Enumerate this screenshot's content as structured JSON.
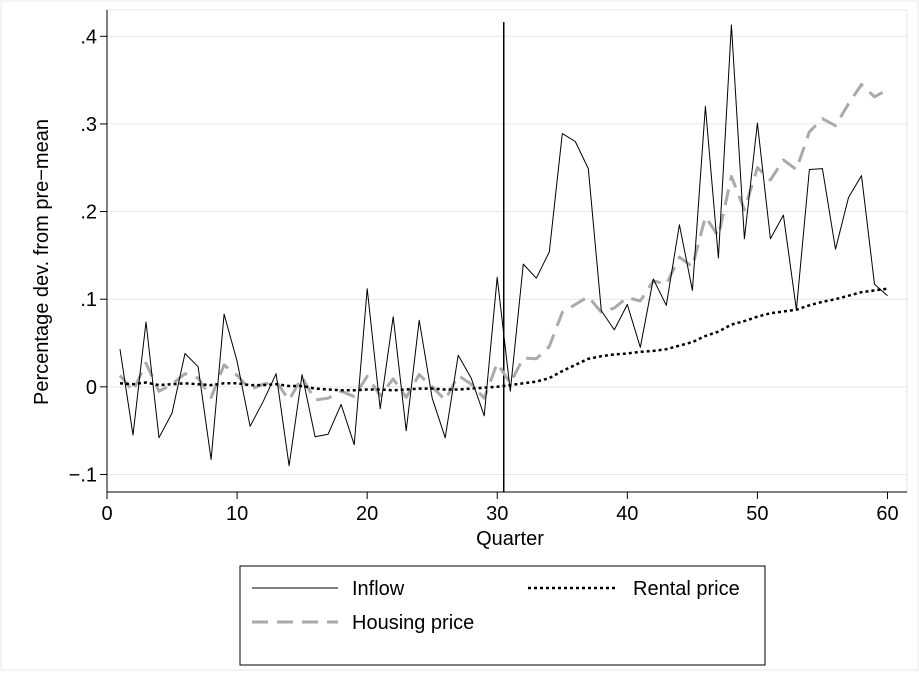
{
  "chart_data": {
    "type": "line",
    "title": "",
    "xlabel": "Quarter",
    "ylabel": "Percentage dev. from pre−mean",
    "xlim": [
      0,
      61.5
    ],
    "ylim": [
      -0.12,
      0.43
    ],
    "xticks": [
      0,
      10,
      20,
      30,
      40,
      50,
      60
    ],
    "xtick_labels": [
      "0",
      "10",
      "20",
      "30",
      "40",
      "50",
      "60"
    ],
    "yticks": [
      -0.1,
      0,
      0.1,
      0.2,
      0.3,
      0.4
    ],
    "ytick_labels": [
      "−.1",
      "0",
      ".1",
      ".2",
      ".3",
      ".4"
    ],
    "grid": "horizontal",
    "legend_position": "bottom",
    "vertical_line_x": 30.5,
    "x": [
      1,
      2,
      3,
      4,
      5,
      6,
      7,
      8,
      9,
      10,
      11,
      12,
      13,
      14,
      15,
      16,
      17,
      18,
      19,
      20,
      21,
      22,
      23,
      24,
      25,
      26,
      27,
      28,
      29,
      30,
      31,
      32,
      33,
      34,
      35,
      36,
      37,
      38,
      39,
      40,
      41,
      42,
      43,
      44,
      45,
      46,
      47,
      48,
      49,
      50,
      51,
      52,
      53,
      54,
      55,
      56,
      57,
      58,
      59,
      60
    ],
    "series": [
      {
        "name": "Inflow",
        "color": "#000000",
        "style": "solid",
        "values": [
          0.043,
          -0.055,
          0.074,
          -0.058,
          -0.03,
          0.038,
          0.023,
          -0.083,
          0.083,
          0.029,
          -0.045,
          -0.017,
          0.015,
          -0.09,
          0.014,
          -0.057,
          -0.054,
          -0.02,
          -0.066,
          0.112,
          -0.025,
          0.08,
          -0.05,
          0.076,
          -0.013,
          -0.058,
          0.036,
          0.01,
          -0.033,
          0.125,
          -0.005,
          0.14,
          0.124,
          0.154,
          0.289,
          0.28,
          0.249,
          0.087,
          0.065,
          0.094,
          0.045,
          0.123,
          0.093,
          0.185,
          0.11,
          0.32,
          0.147,
          0.413,
          0.169,
          0.301,
          0.169,
          0.196,
          0.088,
          0.248,
          0.249,
          0.157,
          0.216,
          0.241,
          0.117,
          0.104
        ]
      },
      {
        "name": "Rental price",
        "color": "#000000",
        "style": "dotted",
        "values": [
          0.004,
          0.003,
          0.005,
          0.002,
          0.003,
          0.004,
          0.003,
          0.002,
          0.004,
          0.004,
          0.002,
          0.002,
          0.003,
          0.001,
          0.001,
          -0.002,
          -0.003,
          -0.004,
          -0.004,
          -0.003,
          -0.003,
          -0.004,
          -0.003,
          -0.002,
          -0.002,
          -0.003,
          -0.003,
          -0.002,
          -0.001,
          0.0,
          0.002,
          0.004,
          0.006,
          0.01,
          0.018,
          0.025,
          0.032,
          0.035,
          0.037,
          0.038,
          0.04,
          0.041,
          0.043,
          0.047,
          0.051,
          0.058,
          0.063,
          0.071,
          0.075,
          0.08,
          0.084,
          0.086,
          0.088,
          0.093,
          0.097,
          0.1,
          0.104,
          0.108,
          0.11,
          0.112
        ]
      },
      {
        "name": "Housing price",
        "color": "#aaaaaa",
        "style": "dashed",
        "values": [
          0.013,
          -0.005,
          0.027,
          -0.005,
          0.003,
          0.015,
          0.01,
          -0.012,
          0.025,
          0.013,
          -0.003,
          0.003,
          0.006,
          -0.015,
          0.011,
          -0.015,
          -0.013,
          -0.005,
          -0.011,
          0.012,
          -0.01,
          0.009,
          -0.012,
          0.014,
          0.0,
          -0.015,
          0.013,
          0.003,
          -0.013,
          0.027,
          0.004,
          0.033,
          0.032,
          0.046,
          0.085,
          0.094,
          0.103,
          0.085,
          0.09,
          0.102,
          0.098,
          0.121,
          0.117,
          0.148,
          0.137,
          0.194,
          0.172,
          0.24,
          0.202,
          0.25,
          0.236,
          0.259,
          0.248,
          0.291,
          0.306,
          0.298,
          0.323,
          0.345,
          0.331,
          0.339
        ]
      }
    ]
  }
}
